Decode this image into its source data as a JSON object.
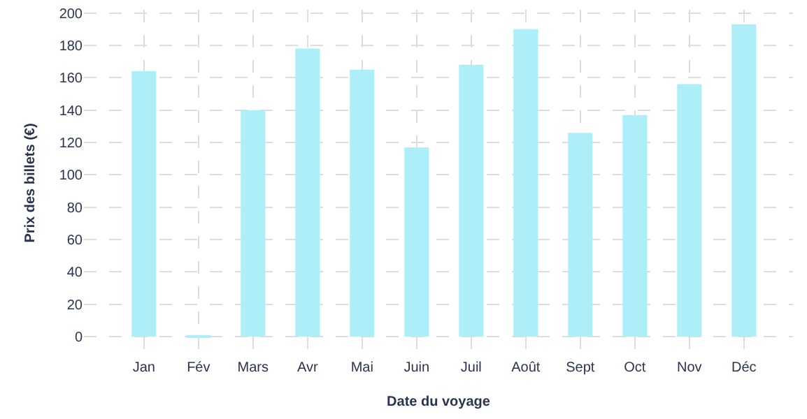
{
  "chart_data": {
    "type": "bar",
    "xlabel": "Date du voyage",
    "ylabel": "Prix des billets (€)",
    "categories": [
      "Jan",
      "Fév",
      "Mars",
      "Avr",
      "Mai",
      "Juin",
      "Juil",
      "Août",
      "Sept",
      "Oct",
      "Nov",
      "Déc"
    ],
    "values": [
      164,
      1,
      140,
      178,
      165,
      117,
      168,
      190,
      126,
      137,
      156,
      193
    ],
    "color": "#aeeef8",
    "ylim": [
      -12,
      202
    ],
    "yticks": [
      0,
      20,
      40,
      60,
      80,
      100,
      120,
      140,
      160,
      180,
      200
    ],
    "grid": true
  }
}
